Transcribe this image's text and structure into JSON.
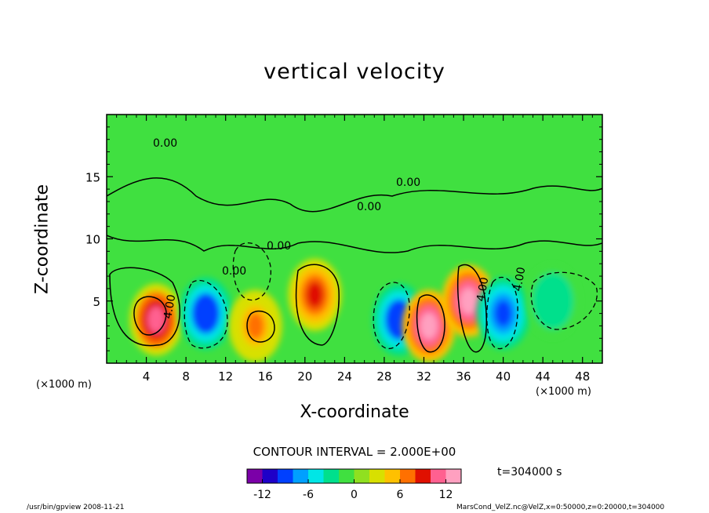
{
  "chart_data": {
    "type": "heatmap",
    "title": "vertical velocity",
    "xlabel": "X-coordinate",
    "ylabel": "Z-coordinate",
    "x_unit_left": "(×1000 m)",
    "x_unit_right": "(×1000 m)",
    "xlim": [
      0,
      50
    ],
    "ylim": [
      0,
      20
    ],
    "x_ticks": [
      4,
      8,
      12,
      16,
      20,
      24,
      28,
      32,
      36,
      40,
      44,
      48
    ],
    "y_ticks": [
      5,
      10,
      15
    ],
    "colorbar": {
      "range": [
        -14,
        14
      ],
      "ticks": [
        -12,
        -6,
        0,
        6,
        12
      ],
      "colors": [
        "#7b00a8",
        "#1e00c8",
        "#0040ff",
        "#00a0ff",
        "#00e6e6",
        "#00e08c",
        "#40e040",
        "#90e020",
        "#d8e000",
        "#ffc000",
        "#ff7000",
        "#e01000",
        "#ff6090",
        "#ffa0c0"
      ]
    },
    "contour_interval_text": "CONTOUR INTERVAL = 2.000E+00",
    "contour_labels": [
      "0.00",
      "0.00",
      "0.00",
      "0.00",
      "0.00",
      "4.00",
      "4.00",
      "4.00"
    ],
    "cells": [
      {
        "x": 5,
        "z": 3.5,
        "value": 11
      },
      {
        "x": 10,
        "z": 4,
        "value": -10
      },
      {
        "x": 15,
        "z": 3,
        "value": 6
      },
      {
        "x": 21,
        "z": 5.5,
        "value": 8
      },
      {
        "x": 29.5,
        "z": 3.5,
        "value": -10
      },
      {
        "x": 32.5,
        "z": 3,
        "value": 12
      },
      {
        "x": 36.5,
        "z": 5,
        "value": 13
      },
      {
        "x": 40,
        "z": 4,
        "value": -9
      },
      {
        "x": 45,
        "z": 5,
        "value": -4
      }
    ],
    "time_label": "t=304000 s"
  },
  "footer": {
    "left": "/usr/bin/gpview  2008-11-21",
    "right": "MarsCond_VelZ.nc@VelZ,x=0:50000,z=0:20000,t=304000"
  }
}
